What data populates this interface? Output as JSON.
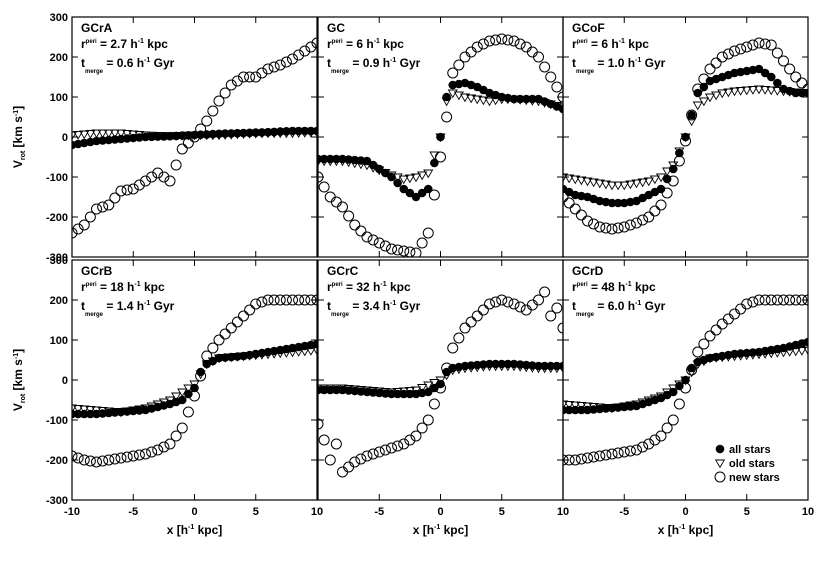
{
  "chart_data": {
    "type": "scatter",
    "layout": "2x3 panel grid with shared axes",
    "x_axis": {
      "xlim": [
        -10,
        10
      ],
      "ticks": [
        -10,
        -5,
        0,
        5,
        10
      ],
      "tick_labels": [
        "-10",
        "-5",
        "0",
        "5",
        "10"
      ]
    },
    "y_axis": {
      "ylim": [
        -300,
        300
      ],
      "ticks": [
        -300,
        -200,
        -100,
        0,
        100,
        200,
        300
      ],
      "tick_labels": [
        "-300",
        "-200",
        "-100",
        "0",
        "100",
        "200",
        "300"
      ]
    },
    "xlabel": {
      "text": "x [h",
      "sup": "-1",
      "tail": " kpc]"
    },
    "ylabel": {
      "main": "V",
      "sub": "rot",
      "unit_open": " [km s",
      "unit_sup": "-1",
      "unit_close": "]"
    },
    "legend": {
      "position": "bottom-right",
      "items": [
        {
          "marker": "filled-circle",
          "label": "all stars"
        },
        {
          "marker": "open-triangle-down",
          "label": "old stars"
        },
        {
          "marker": "open-circle",
          "label": "new stars"
        }
      ]
    },
    "annotation_labels": {
      "r_main": "r",
      "r_sub": "peri",
      "t_main": "t",
      "t_sub": "merge",
      "h_prefix": " h",
      "h_sup": "-1",
      "kpc": " kpc",
      "gyr": " Gyr"
    },
    "panels": [
      {
        "name": "GCrA",
        "r_peri": "2.7",
        "t_merge": "0.6",
        "series": [
          {
            "name": "all stars",
            "x": [
              -10,
              -8,
              -6,
              -4,
              -2,
              0,
              2,
              4,
              6,
              8,
              10
            ],
            "y": [
              -20,
              -10,
              -5,
              0,
              2,
              5,
              8,
              10,
              12,
              15,
              15
            ]
          },
          {
            "name": "old stars",
            "x": [
              -10,
              -8,
              -6,
              -4,
              -2,
              0,
              2,
              4,
              6,
              8,
              10
            ],
            "y": [
              5,
              10,
              10,
              5,
              3,
              5,
              5,
              8,
              10,
              10,
              12
            ]
          },
          {
            "name": "new stars",
            "x": [
              -10,
              -9,
              -8,
              -7,
              -6,
              -5,
              -4,
              -3,
              -2,
              -1,
              0,
              1,
              2,
              3,
              4,
              5,
              6,
              7,
              8,
              9,
              10
            ],
            "y": [
              -240,
              -220,
              -180,
              -170,
              -135,
              -130,
              -110,
              -90,
              -110,
              -30,
              0,
              40,
              90,
              130,
              150,
              150,
              170,
              180,
              195,
              215,
              235
            ]
          }
        ]
      },
      {
        "name": "GC",
        "r_peri": "6",
        "t_merge": "0.9",
        "series": [
          {
            "name": "all stars",
            "x": [
              -10,
              -8,
              -6,
              -4,
              -3,
              -2,
              -1,
              0,
              0.5,
              1,
              2,
              3,
              4,
              5,
              6,
              8,
              10
            ],
            "y": [
              -55,
              -55,
              -60,
              -100,
              -130,
              -150,
              -130,
              0,
              100,
              130,
              135,
              125,
              110,
              100,
              95,
              95,
              70
            ]
          },
          {
            "name": "old stars",
            "x": [
              -10,
              -8,
              -6,
              -4,
              -3,
              -2,
              -1,
              0,
              0.5,
              1,
              2,
              3,
              4,
              5,
              6,
              8,
              10
            ],
            "y": [
              -60,
              -60,
              -70,
              -95,
              -105,
              -100,
              -90,
              0,
              90,
              110,
              100,
              95,
              90,
              95,
              95,
              90,
              75
            ]
          },
          {
            "name": "new stars",
            "x": [
              -10,
              -9,
              -8,
              -7,
              -6,
              -5,
              -4,
              -3,
              -2,
              -1,
              0,
              0.5,
              1,
              2,
              3,
              4,
              5,
              6,
              7,
              8,
              9,
              10
            ],
            "y": [
              -100,
              -150,
              -175,
              -220,
              -250,
              -265,
              -280,
              -285,
              -290,
              -240,
              -50,
              50,
              160,
              200,
              225,
              240,
              245,
              240,
              225,
              200,
              150,
              100
            ]
          }
        ]
      },
      {
        "name": "GCoF",
        "r_peri": "6",
        "t_merge": "1.0",
        "series": [
          {
            "name": "all stars",
            "x": [
              -10,
              -9,
              -8,
              -7,
              -6,
              -5,
              -4,
              -3,
              -2,
              -1,
              0,
              1,
              2,
              3,
              4,
              5,
              6,
              7,
              8,
              9,
              10
            ],
            "y": [
              -130,
              -145,
              -150,
              -160,
              -165,
              -165,
              -160,
              -145,
              -130,
              -80,
              0,
              110,
              140,
              150,
              160,
              165,
              170,
              150,
              120,
              110,
              110
            ]
          },
          {
            "name": "old stars",
            "x": [
              -10,
              -8,
              -6,
              -5,
              -4,
              -3,
              -2,
              -1,
              0,
              1,
              2,
              3,
              4,
              6,
              8,
              10
            ],
            "y": [
              -100,
              -110,
              -120,
              -120,
              -115,
              -110,
              -100,
              -70,
              0,
              80,
              100,
              110,
              115,
              120,
              115,
              110
            ]
          },
          {
            "name": "new stars",
            "x": [
              -10,
              -9,
              -8,
              -7,
              -6,
              -5,
              -4,
              -3,
              -2,
              -1,
              0,
              1,
              2,
              3,
              4,
              5,
              6,
              7,
              8,
              9,
              10
            ],
            "y": [
              -150,
              -180,
              -210,
              -225,
              -230,
              -225,
              -215,
              -200,
              -170,
              -110,
              -10,
              120,
              170,
              200,
              215,
              225,
              235,
              230,
              190,
              150,
              120
            ]
          }
        ]
      },
      {
        "name": "GCrB",
        "r_peri": "18",
        "t_merge": "1.4",
        "series": [
          {
            "name": "all stars",
            "x": [
              -10,
              -8,
              -6,
              -4,
              -2,
              -1,
              0,
              0.5,
              1,
              2,
              4,
              6,
              8,
              10
            ],
            "y": [
              -85,
              -85,
              -80,
              -75,
              -60,
              -50,
              -20,
              20,
              40,
              55,
              60,
              70,
              80,
              90
            ]
          },
          {
            "name": "old stars",
            "x": [
              -10,
              -8,
              -6,
              -4,
              -2,
              0,
              1,
              2,
              4,
              6,
              8,
              10
            ],
            "y": [
              -70,
              -75,
              -80,
              -70,
              -50,
              -10,
              40,
              55,
              60,
              65,
              70,
              75
            ]
          },
          {
            "name": "new stars",
            "x": [
              -10,
              -9,
              -8,
              -7,
              -6,
              -5,
              -4,
              -3,
              -2,
              -1,
              0,
              1,
              2,
              3,
              4,
              5,
              6,
              7,
              8,
              9,
              10
            ],
            "y": [
              -190,
              -200,
              -205,
              -200,
              -195,
              -190,
              -185,
              -175,
              -160,
              -120,
              -40,
              60,
              100,
              130,
              160,
              190,
              200,
              200,
              200,
              200,
              200
            ]
          }
        ]
      },
      {
        "name": "GCrC",
        "r_peri": "32",
        "t_merge": "3.4",
        "series": [
          {
            "name": "all stars",
            "x": [
              -10,
              -8,
              -6,
              -4,
              -2,
              -1,
              0,
              0.5,
              1,
              2,
              4,
              6,
              8,
              10
            ],
            "y": [
              -25,
              -25,
              -30,
              -35,
              -35,
              -30,
              -10,
              20,
              30,
              35,
              40,
              40,
              35,
              35
            ]
          },
          {
            "name": "old stars",
            "x": [
              -10,
              -8,
              -6,
              -4,
              -2,
              0,
              1,
              2,
              4,
              6,
              8,
              10
            ],
            "y": [
              -20,
              -20,
              -25,
              -30,
              -25,
              0,
              25,
              30,
              35,
              35,
              30,
              30
            ]
          },
          {
            "name": "new stars",
            "x": [
              -10,
              -9.5,
              -9,
              -8.5,
              -8,
              -7,
              -6,
              -5,
              -4,
              -3,
              -2,
              -1,
              0,
              1,
              2,
              3,
              4,
              5,
              6,
              7,
              8,
              8.5,
              9,
              9.5,
              10
            ],
            "y": [
              -110,
              -150,
              -200,
              -160,
              -230,
              -205,
              -190,
              -180,
              -170,
              -160,
              -140,
              -100,
              -20,
              80,
              130,
              160,
              190,
              200,
              190,
              175,
              200,
              220,
              160,
              180,
              130
            ]
          }
        ]
      },
      {
        "name": "GCrD",
        "r_peri": "48",
        "t_merge": "6.0",
        "series": [
          {
            "name": "all stars",
            "x": [
              -10,
              -8,
              -6,
              -4,
              -2,
              -1,
              0,
              0.5,
              1,
              2,
              4,
              6,
              8,
              10
            ],
            "y": [
              -75,
              -75,
              -70,
              -65,
              -45,
              -30,
              0,
              30,
              45,
              55,
              65,
              70,
              80,
              95
            ]
          },
          {
            "name": "old stars",
            "x": [
              -10,
              -8,
              -6,
              -4,
              -2,
              0,
              1,
              2,
              4,
              6,
              8,
              10
            ],
            "y": [
              -60,
              -65,
              -70,
              -60,
              -40,
              0,
              40,
              55,
              60,
              65,
              70,
              75
            ]
          },
          {
            "name": "new stars",
            "x": [
              -10,
              -9,
              -8,
              -7,
              -6,
              -5,
              -4,
              -3,
              -2,
              -1,
              0,
              1,
              2,
              3,
              4,
              5,
              6,
              7,
              8,
              9,
              10
            ],
            "y": [
              -200,
              -200,
              -195,
              -190,
              -185,
              -180,
              -175,
              -160,
              -140,
              -100,
              -20,
              70,
              110,
              140,
              165,
              190,
              200,
              200,
              200,
              200,
              200
            ]
          }
        ]
      }
    ]
  }
}
